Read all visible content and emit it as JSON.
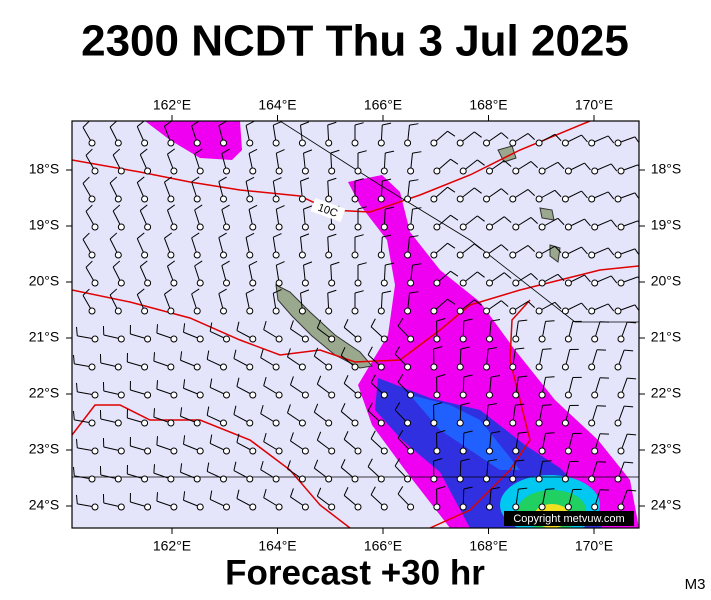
{
  "header": {
    "title": "2300 NCDT Thu 3 Jul 2025"
  },
  "map": {
    "lon_ticks": [
      {
        "value": 162,
        "label": "162°E"
      },
      {
        "value": 164,
        "label": "164°E"
      },
      {
        "value": 166,
        "label": "166°E"
      },
      {
        "value": 168,
        "label": "168°E"
      },
      {
        "value": 170,
        "label": "170°E"
      }
    ],
    "lat_ticks": [
      {
        "value": -18,
        "label": "18°S"
      },
      {
        "value": -19,
        "label": "19°S"
      },
      {
        "value": -20,
        "label": "20°S"
      },
      {
        "value": -21,
        "label": "21°S"
      },
      {
        "value": -22,
        "label": "22°S"
      },
      {
        "value": -23,
        "label": "23°S"
      },
      {
        "value": -24,
        "label": "24°S"
      }
    ],
    "contour_label": "10C",
    "copyright": "Copyright metvuw.com"
  },
  "footer": {
    "forecast": "Forecast +30 hr",
    "model": "M3"
  }
}
